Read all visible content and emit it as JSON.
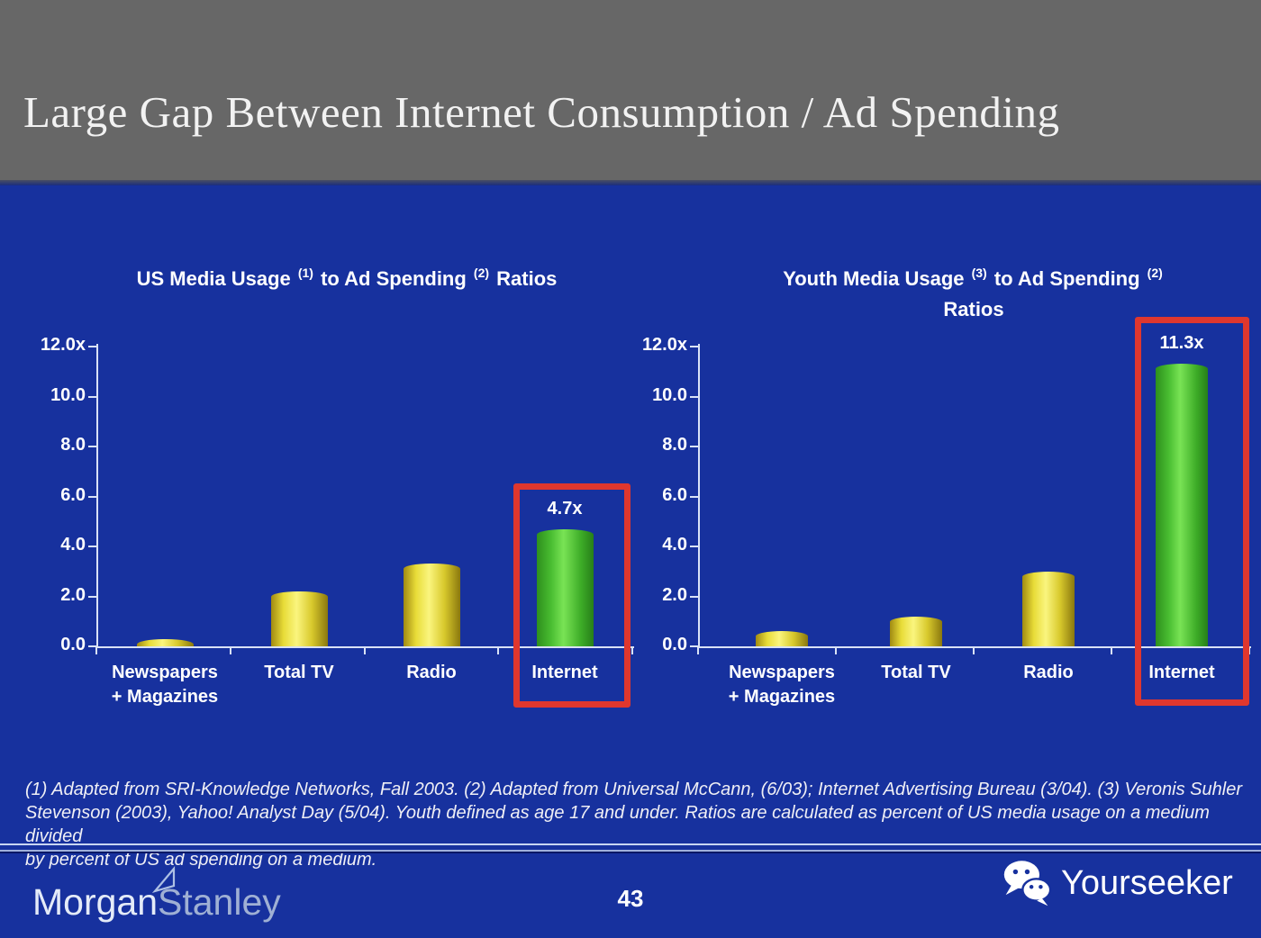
{
  "slide": {
    "title": "Large Gap Between Internet Consumption / Ad Spending",
    "page_number": "43",
    "footnote_lines": [
      "(1) Adapted from SRI-Knowledge Networks, Fall 2003.  (2) Adapted from Universal McCann, (6/03); Internet Advertising Bureau (3/04). (3) Veronis Suhler",
      "Stevenson (2003), Yahoo! Analyst Day (5/04).  Youth defined as age 17 and under.  Ratios are calculated as percent of US media usage on a medium divided",
      "by percent of US ad spending on a medium."
    ],
    "footer": {
      "brand_morgan": "Morgan",
      "brand_stanley": "Stanley",
      "watermark": "Yourseeker",
      "icons": [
        "morgan-stanley-pennant-icon",
        "wechat-icon"
      ]
    },
    "colors": {
      "header_bg": "#676767",
      "slide_bg": "#17319E",
      "title_text": "#F2F2F2",
      "chart_text": "#FFFFFF",
      "axis": "#D9E2F6",
      "bar_yellow": "#EFE23B",
      "bar_green": "#4FC636",
      "highlight_red": "#DF372E",
      "footnote_text": "#EFEFF5",
      "ms_morgan": "#E4EBF8",
      "ms_stanley": "#9FB0D4",
      "watermark_text": "#FFFFFF"
    }
  },
  "chart_data": [
    {
      "type": "bar",
      "title": "US Media Usage (1) to Ad Spending (2) Ratios",
      "title_lines": [
        [
          {
            "t": "US Media Usage "
          },
          {
            "t": "(1)",
            "sup": true
          },
          {
            "t": " to Ad Spending "
          },
          {
            "t": "(2)",
            "sup": true
          },
          {
            "t": " Ratios"
          }
        ]
      ],
      "categories": [
        [
          "Newspapers",
          "+ Magazines"
        ],
        [
          "Total TV"
        ],
        [
          "Radio"
        ],
        [
          "Internet"
        ]
      ],
      "values": [
        0.3,
        2.2,
        3.3,
        4.7
      ],
      "bar_labels": [
        "",
        "",
        "",
        "4.7x"
      ],
      "bar_colors": [
        "yellow",
        "yellow",
        "yellow",
        "green"
      ],
      "highlight_index": 3,
      "xlabel": "",
      "ylabel": "",
      "ylim": [
        0,
        12
      ],
      "yticks": [
        {
          "label": "12.0x",
          "value": 12
        },
        {
          "label": "10.0",
          "value": 10
        },
        {
          "label": "8.0",
          "value": 8
        },
        {
          "label": "6.0",
          "value": 6
        },
        {
          "label": "4.0",
          "value": 4
        },
        {
          "label": "2.0",
          "value": 2
        },
        {
          "label": "0.0",
          "value": 0
        }
      ],
      "grid": false,
      "legend": null
    },
    {
      "type": "bar",
      "title": "Youth Media Usage (3) to Ad Spending (2) Ratios",
      "title_lines": [
        [
          {
            "t": "Youth Media Usage "
          },
          {
            "t": "(3)",
            "sup": true
          },
          {
            "t": " to Ad Spending "
          },
          {
            "t": "(2)",
            "sup": true
          }
        ],
        [
          {
            "t": "Ratios"
          }
        ]
      ],
      "categories": [
        [
          "Newspapers",
          "+ Magazines"
        ],
        [
          "Total TV"
        ],
        [
          "Radio"
        ],
        [
          "Internet"
        ]
      ],
      "values": [
        0.6,
        1.2,
        3.0,
        11.3
      ],
      "bar_labels": [
        "",
        "",
        "",
        "11.3x"
      ],
      "bar_colors": [
        "yellow",
        "yellow",
        "yellow",
        "green"
      ],
      "highlight_index": 3,
      "xlabel": "",
      "ylabel": "",
      "ylim": [
        0,
        12
      ],
      "yticks": [
        {
          "label": "12.0x",
          "value": 12
        },
        {
          "label": "10.0",
          "value": 10
        },
        {
          "label": "8.0",
          "value": 8
        },
        {
          "label": "6.0",
          "value": 6
        },
        {
          "label": "4.0",
          "value": 4
        },
        {
          "label": "2.0",
          "value": 2
        },
        {
          "label": "0.0",
          "value": 0
        }
      ],
      "grid": false,
      "legend": null
    }
  ]
}
